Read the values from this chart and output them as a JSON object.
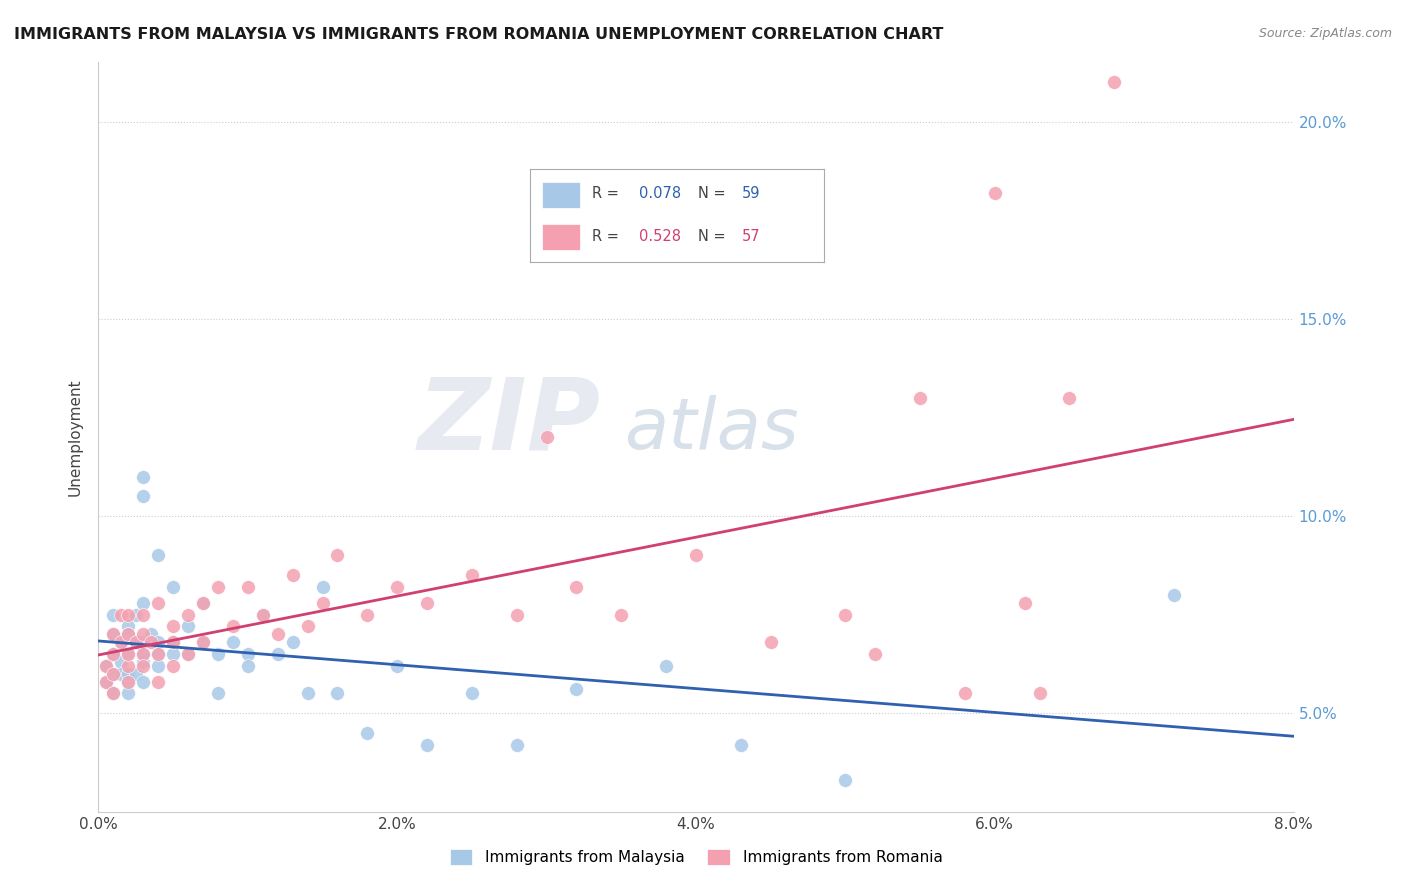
{
  "title": "IMMIGRANTS FROM MALAYSIA VS IMMIGRANTS FROM ROMANIA UNEMPLOYMENT CORRELATION CHART",
  "source": "Source: ZipAtlas.com",
  "ylabel": "Unemployment",
  "y_ticks": [
    0.05,
    0.1,
    0.15,
    0.2
  ],
  "y_tick_labels": [
    "5.0%",
    "10.0%",
    "15.0%",
    "20.0%"
  ],
  "xlim": [
    0.0,
    0.08
  ],
  "ylim": [
    0.025,
    0.215
  ],
  "malaysia_color": "#a8c8e8",
  "romania_color": "#f4a0b0",
  "malaysia_line_color": "#3060b0",
  "romania_line_color": "#d04070",
  "malaysia_R": 0.078,
  "malaysia_N": 59,
  "romania_R": 0.528,
  "romania_N": 57,
  "watermark_zip": "ZIP",
  "watermark_atlas": "atlas",
  "malaysia_scatter_x": [
    0.0005,
    0.0005,
    0.001,
    0.001,
    0.001,
    0.001,
    0.001,
    0.0015,
    0.0015,
    0.0015,
    0.002,
    0.002,
    0.002,
    0.002,
    0.002,
    0.002,
    0.0025,
    0.0025,
    0.0025,
    0.003,
    0.003,
    0.003,
    0.003,
    0.003,
    0.003,
    0.003,
    0.0035,
    0.004,
    0.004,
    0.004,
    0.004,
    0.005,
    0.005,
    0.005,
    0.006,
    0.006,
    0.007,
    0.007,
    0.008,
    0.008,
    0.009,
    0.01,
    0.01,
    0.011,
    0.012,
    0.013,
    0.014,
    0.015,
    0.016,
    0.018,
    0.02,
    0.022,
    0.025,
    0.028,
    0.032,
    0.038,
    0.043,
    0.05,
    0.072
  ],
  "malaysia_scatter_y": [
    0.062,
    0.058,
    0.065,
    0.06,
    0.07,
    0.055,
    0.075,
    0.063,
    0.068,
    0.06,
    0.065,
    0.058,
    0.072,
    0.06,
    0.055,
    0.07,
    0.068,
    0.075,
    0.06,
    0.063,
    0.078,
    0.065,
    0.068,
    0.058,
    0.11,
    0.105,
    0.07,
    0.065,
    0.068,
    0.09,
    0.062,
    0.065,
    0.082,
    0.068,
    0.065,
    0.072,
    0.078,
    0.068,
    0.065,
    0.055,
    0.068,
    0.065,
    0.062,
    0.075,
    0.065,
    0.068,
    0.055,
    0.082,
    0.055,
    0.045,
    0.062,
    0.042,
    0.055,
    0.042,
    0.056,
    0.062,
    0.042,
    0.033,
    0.08
  ],
  "romania_scatter_x": [
    0.0005,
    0.0005,
    0.001,
    0.001,
    0.001,
    0.001,
    0.0015,
    0.0015,
    0.002,
    0.002,
    0.002,
    0.002,
    0.002,
    0.0025,
    0.003,
    0.003,
    0.003,
    0.003,
    0.0035,
    0.004,
    0.004,
    0.004,
    0.005,
    0.005,
    0.005,
    0.006,
    0.006,
    0.007,
    0.007,
    0.008,
    0.009,
    0.01,
    0.011,
    0.012,
    0.013,
    0.014,
    0.015,
    0.016,
    0.018,
    0.02,
    0.022,
    0.025,
    0.028,
    0.03,
    0.032,
    0.035,
    0.04,
    0.045,
    0.05,
    0.052,
    0.055,
    0.058,
    0.06,
    0.062,
    0.063,
    0.065,
    0.068
  ],
  "romania_scatter_y": [
    0.062,
    0.058,
    0.065,
    0.06,
    0.07,
    0.055,
    0.068,
    0.075,
    0.062,
    0.07,
    0.058,
    0.065,
    0.075,
    0.068,
    0.065,
    0.07,
    0.062,
    0.075,
    0.068,
    0.065,
    0.078,
    0.058,
    0.072,
    0.068,
    0.062,
    0.065,
    0.075,
    0.078,
    0.068,
    0.082,
    0.072,
    0.082,
    0.075,
    0.07,
    0.085,
    0.072,
    0.078,
    0.09,
    0.075,
    0.082,
    0.078,
    0.085,
    0.075,
    0.12,
    0.082,
    0.075,
    0.09,
    0.068,
    0.075,
    0.065,
    0.13,
    0.055,
    0.182,
    0.078,
    0.055,
    0.13,
    0.21
  ]
}
